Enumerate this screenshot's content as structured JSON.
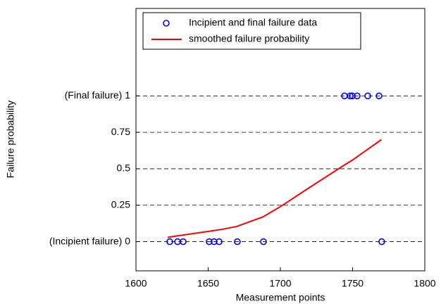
{
  "chart_data": {
    "type": "scatter",
    "x_label": "Measurement points",
    "y_label": "Failure probability",
    "xlim": [
      1600,
      1800
    ],
    "xticks": [
      1600,
      1650,
      1700,
      1750,
      1800
    ],
    "ylim": [
      -0.2,
      1.6
    ],
    "yticks": [
      {
        "value": 0,
        "label": "(Incipient failure)  0"
      },
      0.25,
      0.5,
      0.75,
      {
        "value": 1,
        "label": "(Final failure)  1"
      }
    ],
    "grid": true,
    "legend": "upper left",
    "series": [
      {
        "name": "Incipient and final failure data",
        "type": "scatter",
        "color": "#0000ff",
        "x": [
          1623.4,
          1628.8,
          1632.7,
          1650.7,
          1654.1,
          1657.6,
          1670.2,
          1688.3,
          1770.2,
          1744.4,
          1748.3,
          1749.8,
          1753.2,
          1760.5,
          1768.3
        ],
        "values": [
          0,
          0,
          0,
          0,
          0,
          0,
          0,
          0,
          0,
          1,
          1,
          1,
          1,
          1,
          1
        ]
      },
      {
        "name": "smoothed failure probability",
        "type": "line",
        "color": "#ff0000",
        "x": [
          1622,
          1650,
          1660,
          1670,
          1688,
          1700,
          1720,
          1745,
          1750,
          1770
        ],
        "values": [
          0.03,
          0.07,
          0.085,
          0.105,
          0.17,
          0.24,
          0.37,
          0.53,
          0.56,
          0.7
        ]
      }
    ]
  }
}
